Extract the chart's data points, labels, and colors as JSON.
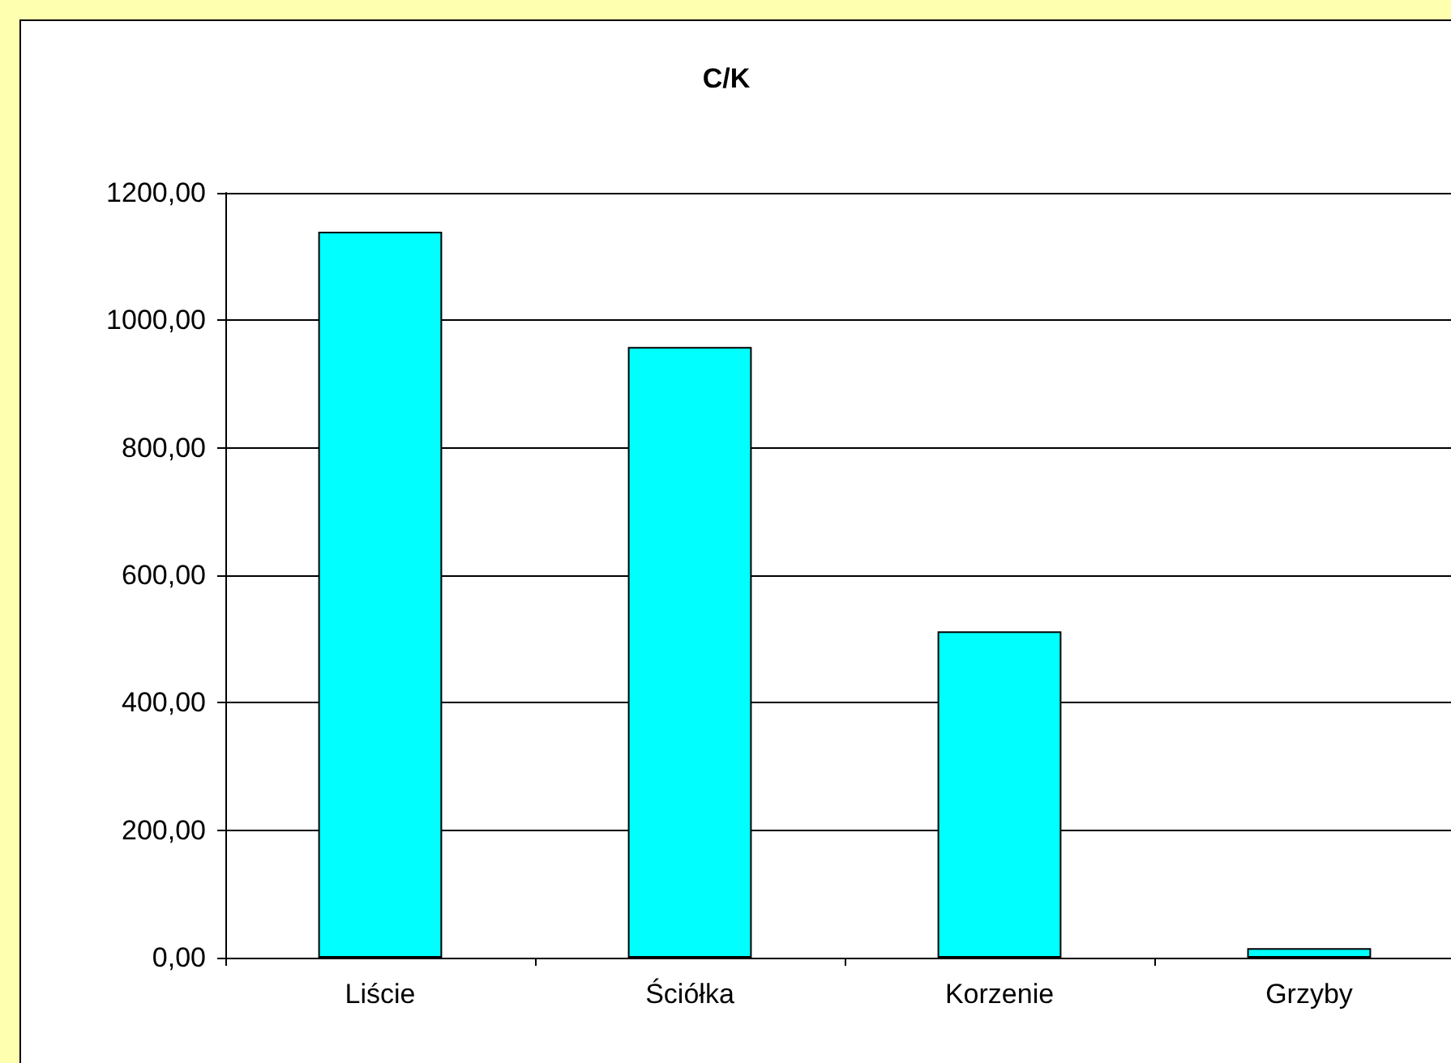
{
  "chart_data": {
    "type": "bar",
    "title": "C/K",
    "categories": [
      "Liście",
      "Ściółka",
      "Korzenie",
      "Grzyby"
    ],
    "values": [
      1139,
      958,
      512,
      15
    ],
    "color": "#00ffff",
    "ylim": [
      0,
      1200
    ],
    "yticks": [
      {
        "value": 0,
        "label": "0,00"
      },
      {
        "value": 200,
        "label": "200,00"
      },
      {
        "value": 400,
        "label": "400,00"
      },
      {
        "value": 600,
        "label": "600,00"
      },
      {
        "value": 800,
        "label": "800,00"
      },
      {
        "value": 1000,
        "label": "1000,00"
      },
      {
        "value": 1200,
        "label": "1200,00"
      }
    ],
    "grid": "y"
  }
}
